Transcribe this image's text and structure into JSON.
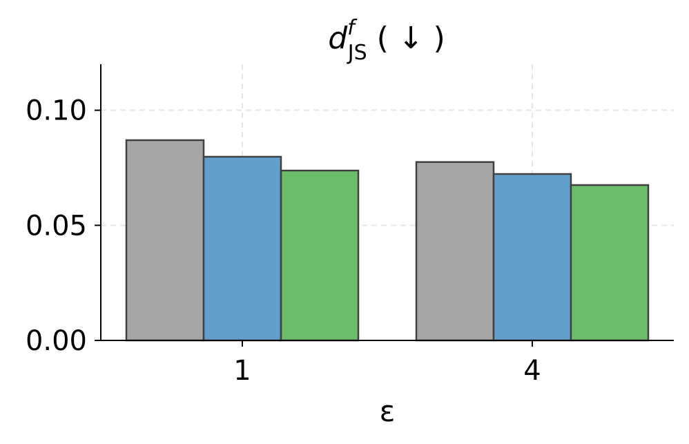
{
  "chart_data": {
    "type": "bar",
    "title": "dJSf ( ↓ )",
    "title_parts": {
      "main": "d",
      "superscript": "f",
      "subscript": "JS",
      "suffix": " ( ↓ )"
    },
    "xlabel": "ε",
    "ylabel": "",
    "categories": [
      "1",
      "4"
    ],
    "ylim": [
      0,
      0.12
    ],
    "yticks": [
      0.0,
      0.05,
      0.1
    ],
    "ytick_labels": [
      "0.00",
      "0.05",
      "0.10"
    ],
    "grid": true,
    "series": [
      {
        "color": "#a6a6a6",
        "values": [
          0.087,
          0.0775
        ]
      },
      {
        "color": "#629fca",
        "values": [
          0.0798,
          0.0723
        ]
      },
      {
        "color": "#6bbc6b",
        "values": [
          0.0738,
          0.0675
        ]
      }
    ]
  }
}
